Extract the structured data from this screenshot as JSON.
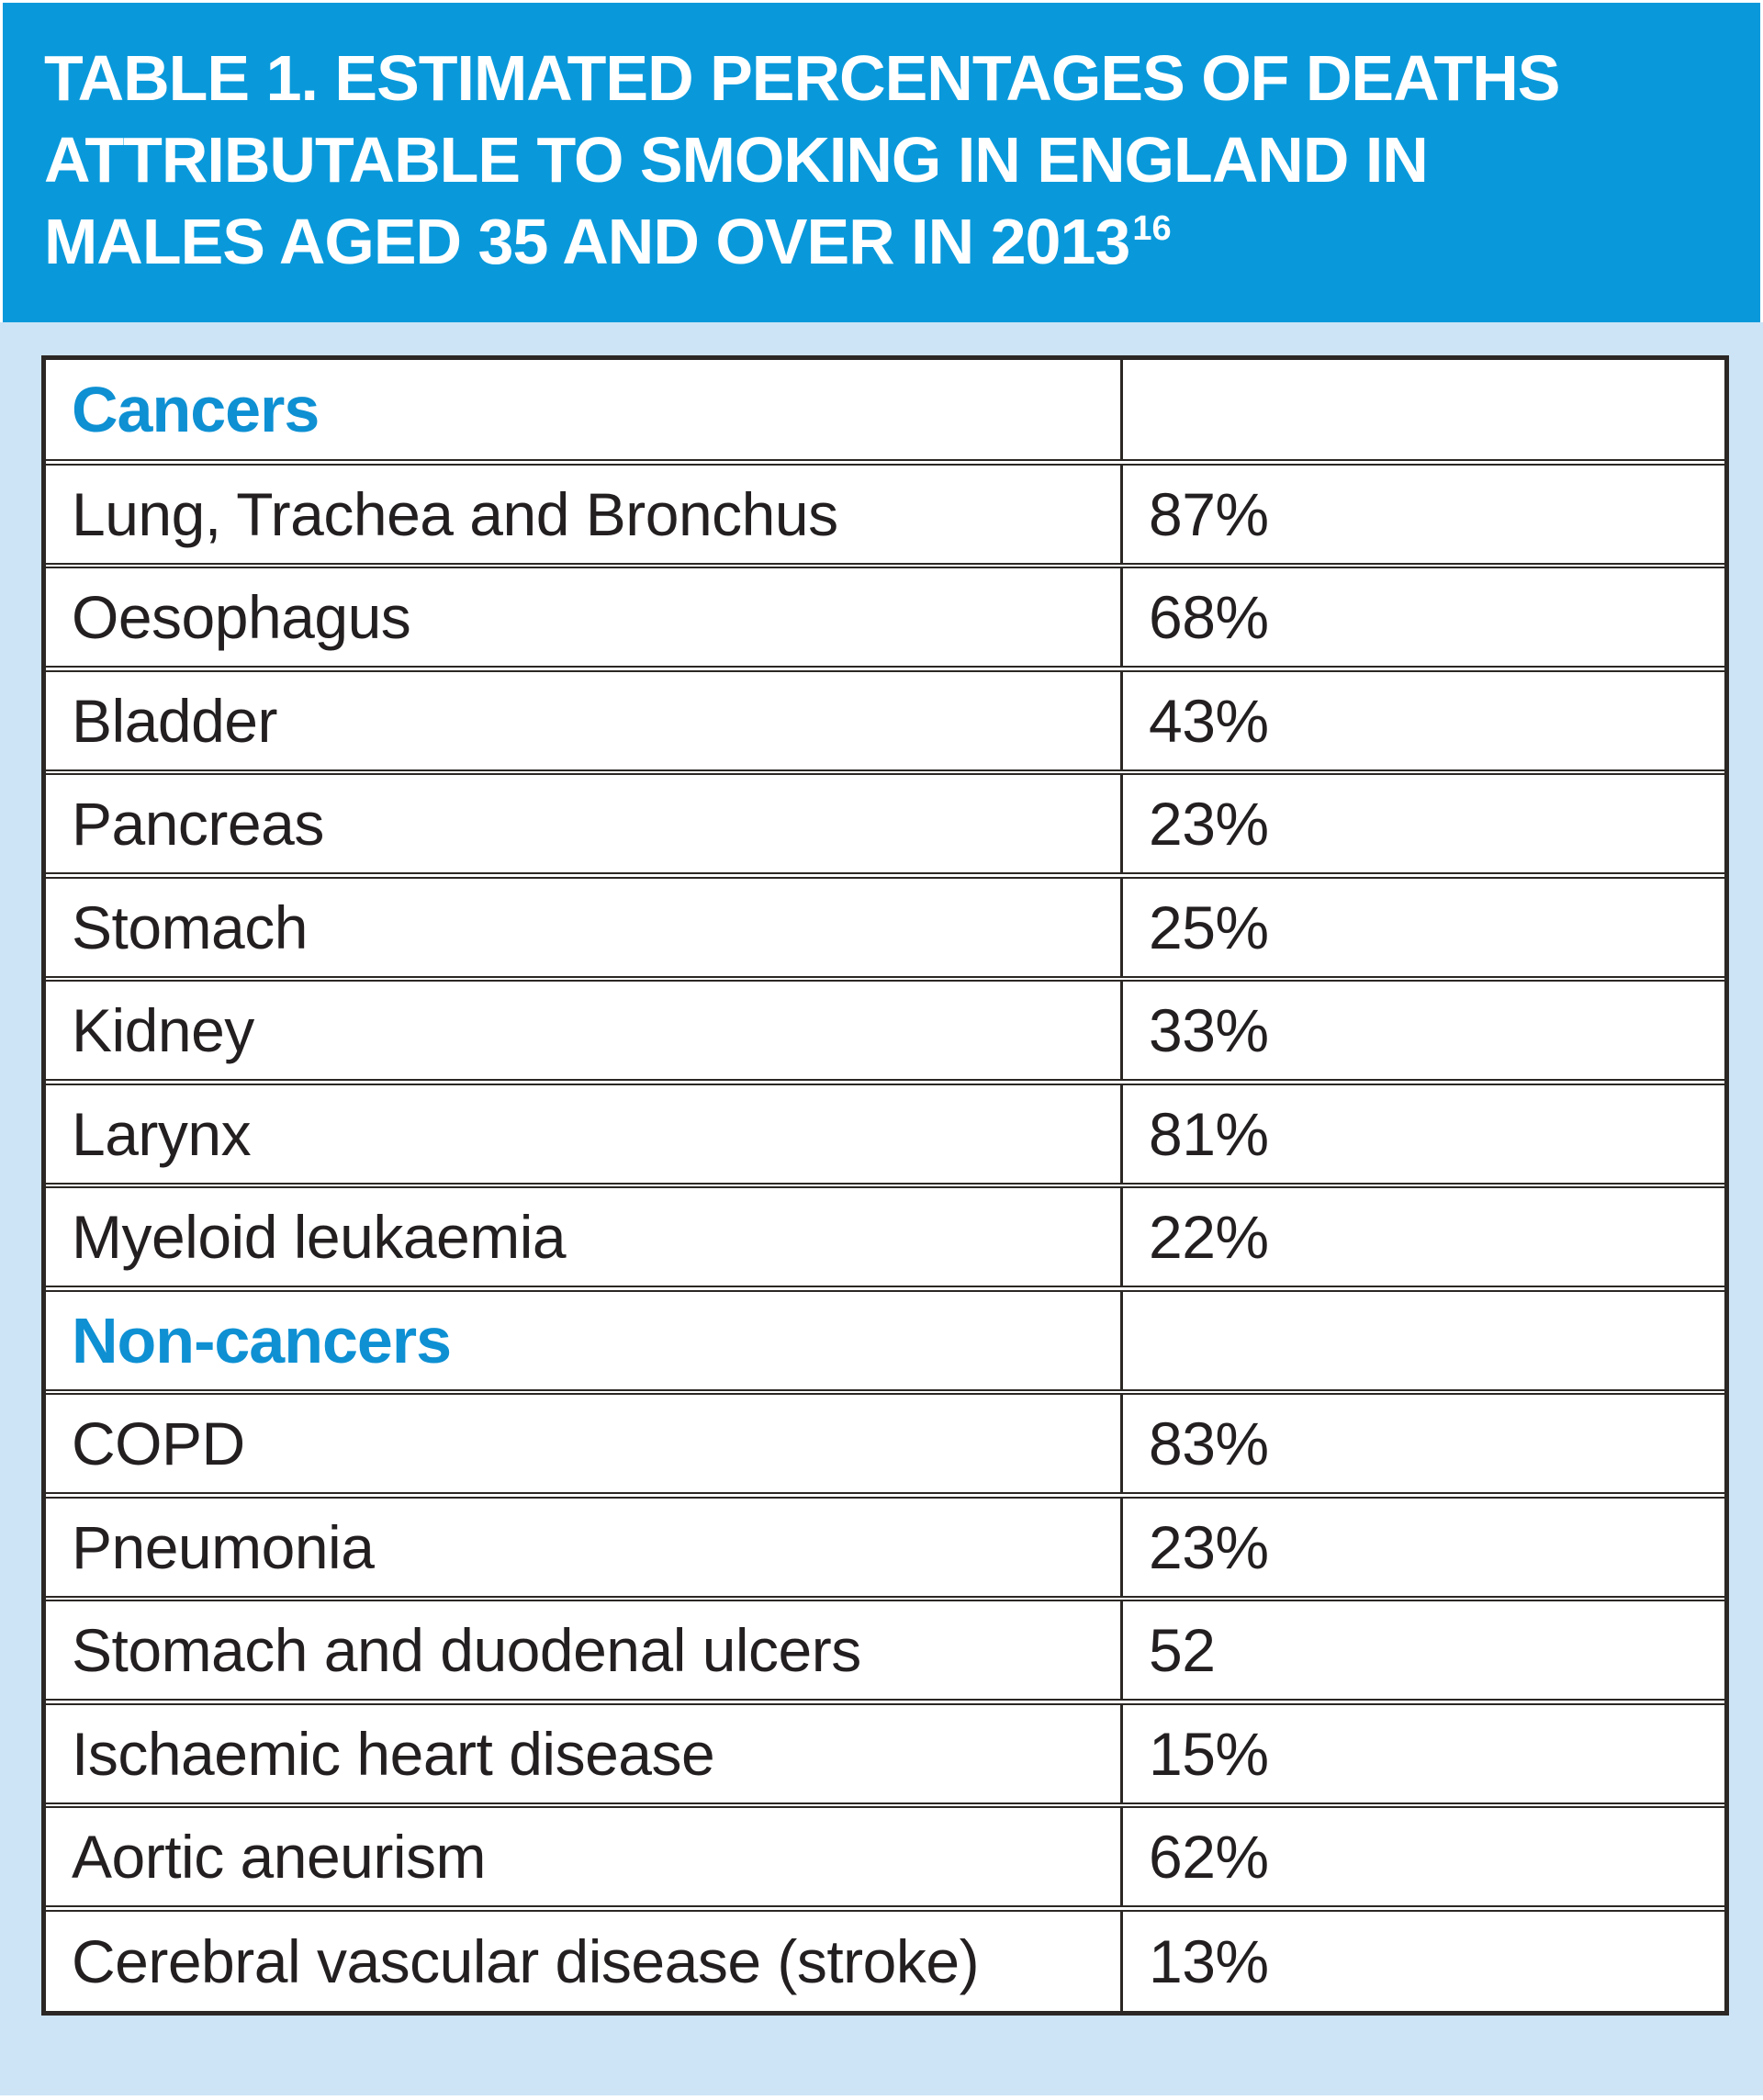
{
  "header": {
    "bg_color": "#0999DB",
    "title_line1": "TABLE 1. ESTIMATED PERCENTAGES OF DEATHS",
    "title_line2": "ATTRIBUTABLE TO SMOKING IN ENGLAND IN",
    "title_line3": "MALES AGED 35 AND OVER IN 2013",
    "title_superscript": "16",
    "text_color": "#FFFFFF"
  },
  "page": {
    "background_color": "#CDE4F6",
    "table_background": "#FFFFFF",
    "border_color": "#2B2724",
    "section_label_color": "#0E90D3",
    "body_text_color": "#231F20"
  },
  "table": {
    "rows": [
      {
        "type": "section",
        "label": "Cancers",
        "value": ""
      },
      {
        "type": "data",
        "label": "Lung, Trachea and Bronchus",
        "value": "87%"
      },
      {
        "type": "data",
        "label": "Oesophagus",
        "value": "68%"
      },
      {
        "type": "data",
        "label": "Bladder",
        "value": "43%"
      },
      {
        "type": "data",
        "label": "Pancreas",
        "value": "23%"
      },
      {
        "type": "data",
        "label": "Stomach",
        "value": "25%"
      },
      {
        "type": "data",
        "label": "Kidney",
        "value": "33%"
      },
      {
        "type": "data",
        "label": "Larynx",
        "value": "81%"
      },
      {
        "type": "data",
        "label": "Myeloid leukaemia",
        "value": "22%"
      },
      {
        "type": "section",
        "label": "Non-cancers",
        "value": ""
      },
      {
        "type": "data",
        "label": "COPD",
        "value": "83%"
      },
      {
        "type": "data",
        "label": "Pneumonia",
        "value": "23%"
      },
      {
        "type": "data",
        "label": "Stomach and duodenal ulcers",
        "value": "52"
      },
      {
        "type": "data",
        "label": "Ischaemic heart disease",
        "value": "15%"
      },
      {
        "type": "data",
        "label": "Aortic aneurism",
        "value": "62%"
      },
      {
        "type": "data",
        "label": "Cerebral vascular disease (stroke)",
        "value": "13%"
      }
    ]
  },
  "chart_data": {
    "type": "table",
    "title": "TABLE 1. ESTIMATED PERCENTAGES OF DEATHS ATTRIBUTABLE TO SMOKING IN ENGLAND IN MALES AGED 35 AND OVER IN 2013",
    "reference_superscript": "16",
    "sections": [
      {
        "name": "Cancers",
        "categories": [
          "Lung, Trachea and Bronchus",
          "Oesophagus",
          "Bladder",
          "Pancreas",
          "Stomach",
          "Kidney",
          "Larynx",
          "Myeloid leukaemia"
        ],
        "values": [
          87,
          68,
          43,
          23,
          25,
          33,
          81,
          22
        ]
      },
      {
        "name": "Non-cancers",
        "categories": [
          "COPD",
          "Pneumonia",
          "Stomach and duodenal ulcers",
          "Ischaemic heart disease",
          "Aortic aneurism",
          "Cerebral vascular disease (stroke)"
        ],
        "values": [
          83,
          23,
          52,
          15,
          62,
          13
        ]
      }
    ],
    "unit": "percent",
    "note": "Stomach and duodenal ulcers value displayed without percent sign in source"
  }
}
